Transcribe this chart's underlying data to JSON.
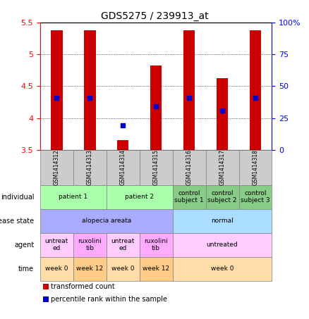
{
  "title": "GDS5275 / 239913_at",
  "samples": [
    "GSM1414312",
    "GSM1414313",
    "GSM1414314",
    "GSM1414315",
    "GSM1414316",
    "GSM1414317",
    "GSM1414318"
  ],
  "red_values": [
    5.38,
    5.38,
    3.65,
    4.82,
    5.38,
    4.63,
    5.38
  ],
  "red_base": [
    3.5,
    3.5,
    3.5,
    3.5,
    3.5,
    3.5,
    3.5
  ],
  "blue_values": [
    4.32,
    4.32,
    3.88,
    4.18,
    4.32,
    4.12,
    4.32
  ],
  "ylim_left": [
    3.5,
    5.5
  ],
  "ylim_right": [
    0,
    100
  ],
  "yticks_left": [
    3.5,
    4.0,
    4.5,
    5.0,
    5.5
  ],
  "yticks_right": [
    0,
    25,
    50,
    75,
    100
  ],
  "ytick_labels_left": [
    "3.5",
    "4",
    "4.5",
    "5",
    "5.5"
  ],
  "ytick_labels_right": [
    "0",
    "25",
    "50",
    "75",
    "100%"
  ],
  "annotation_rows": [
    {
      "label": "individual",
      "cells": [
        {
          "text": "patient 1",
          "span": 2,
          "color": "#aaffaa"
        },
        {
          "text": "patient 2",
          "span": 2,
          "color": "#aaffaa"
        },
        {
          "text": "control\nsubject 1",
          "span": 1,
          "color": "#88cc88"
        },
        {
          "text": "control\nsubject 2",
          "span": 1,
          "color": "#88cc88"
        },
        {
          "text": "control\nsubject 3",
          "span": 1,
          "color": "#88cc88"
        }
      ]
    },
    {
      "label": "disease state",
      "cells": [
        {
          "text": "alopecia areata",
          "span": 4,
          "color": "#aaaaff"
        },
        {
          "text": "normal",
          "span": 3,
          "color": "#aaddff"
        }
      ]
    },
    {
      "label": "agent",
      "cells": [
        {
          "text": "untreat\ned",
          "span": 1,
          "color": "#ffccff"
        },
        {
          "text": "ruxolini\ntib",
          "span": 1,
          "color": "#ffaaff"
        },
        {
          "text": "untreat\ned",
          "span": 1,
          "color": "#ffccff"
        },
        {
          "text": "ruxolini\ntib",
          "span": 1,
          "color": "#ffaaff"
        },
        {
          "text": "untreated",
          "span": 3,
          "color": "#ffccff"
        }
      ]
    },
    {
      "label": "time",
      "cells": [
        {
          "text": "week 0",
          "span": 1,
          "color": "#ffddaa"
        },
        {
          "text": "week 12",
          "span": 1,
          "color": "#ffcc88"
        },
        {
          "text": "week 0",
          "span": 1,
          "color": "#ffddaa"
        },
        {
          "text": "week 12",
          "span": 1,
          "color": "#ffcc88"
        },
        {
          "text": "week 0",
          "span": 3,
          "color": "#ffddaa"
        }
      ]
    }
  ],
  "legend_items": [
    {
      "color": "#cc0000",
      "label": "transformed count"
    },
    {
      "color": "#0000cc",
      "label": "percentile rank within the sample"
    }
  ],
  "bar_color": "#cc0000",
  "dot_color": "#0000cc",
  "bar_width": 0.35,
  "header_bg": "#cccccc"
}
